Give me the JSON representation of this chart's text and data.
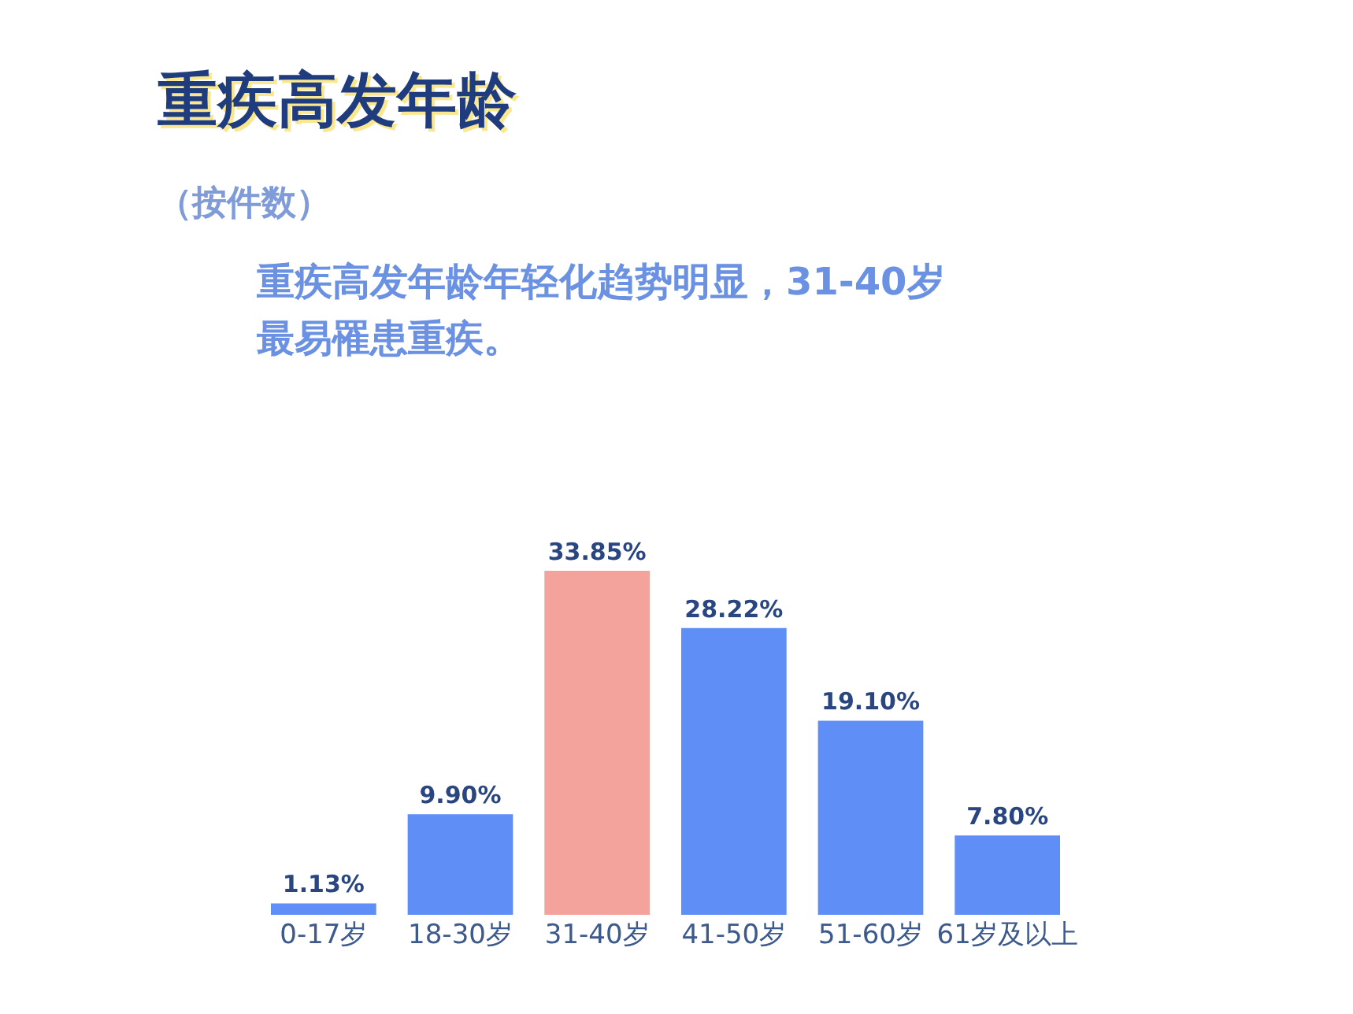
{
  "chart_data": {
    "type": "bar",
    "title": "重疾高发年龄",
    "subtitle": "（按件数）",
    "annotations": [
      "重疾高发年龄年轻化趋势明显，31-40岁",
      "最易罹患重疾。"
    ],
    "categories": [
      "0-17岁",
      "18-30岁",
      "31-40岁",
      "41-50岁",
      "51-60岁",
      "61岁及以上"
    ],
    "values": [
      1.13,
      9.9,
      33.85,
      28.22,
      19.1,
      7.8
    ],
    "colors": [
      "#5e8ef6",
      "#5e8ef6",
      "#f4a39c",
      "#5e8ef6",
      "#5e8ef6",
      "#5e8ef6"
    ],
    "value_labels": [
      "1.13%",
      "9.90%",
      "33.85%",
      "28.22%",
      "19.10%",
      "7.80%"
    ]
  }
}
